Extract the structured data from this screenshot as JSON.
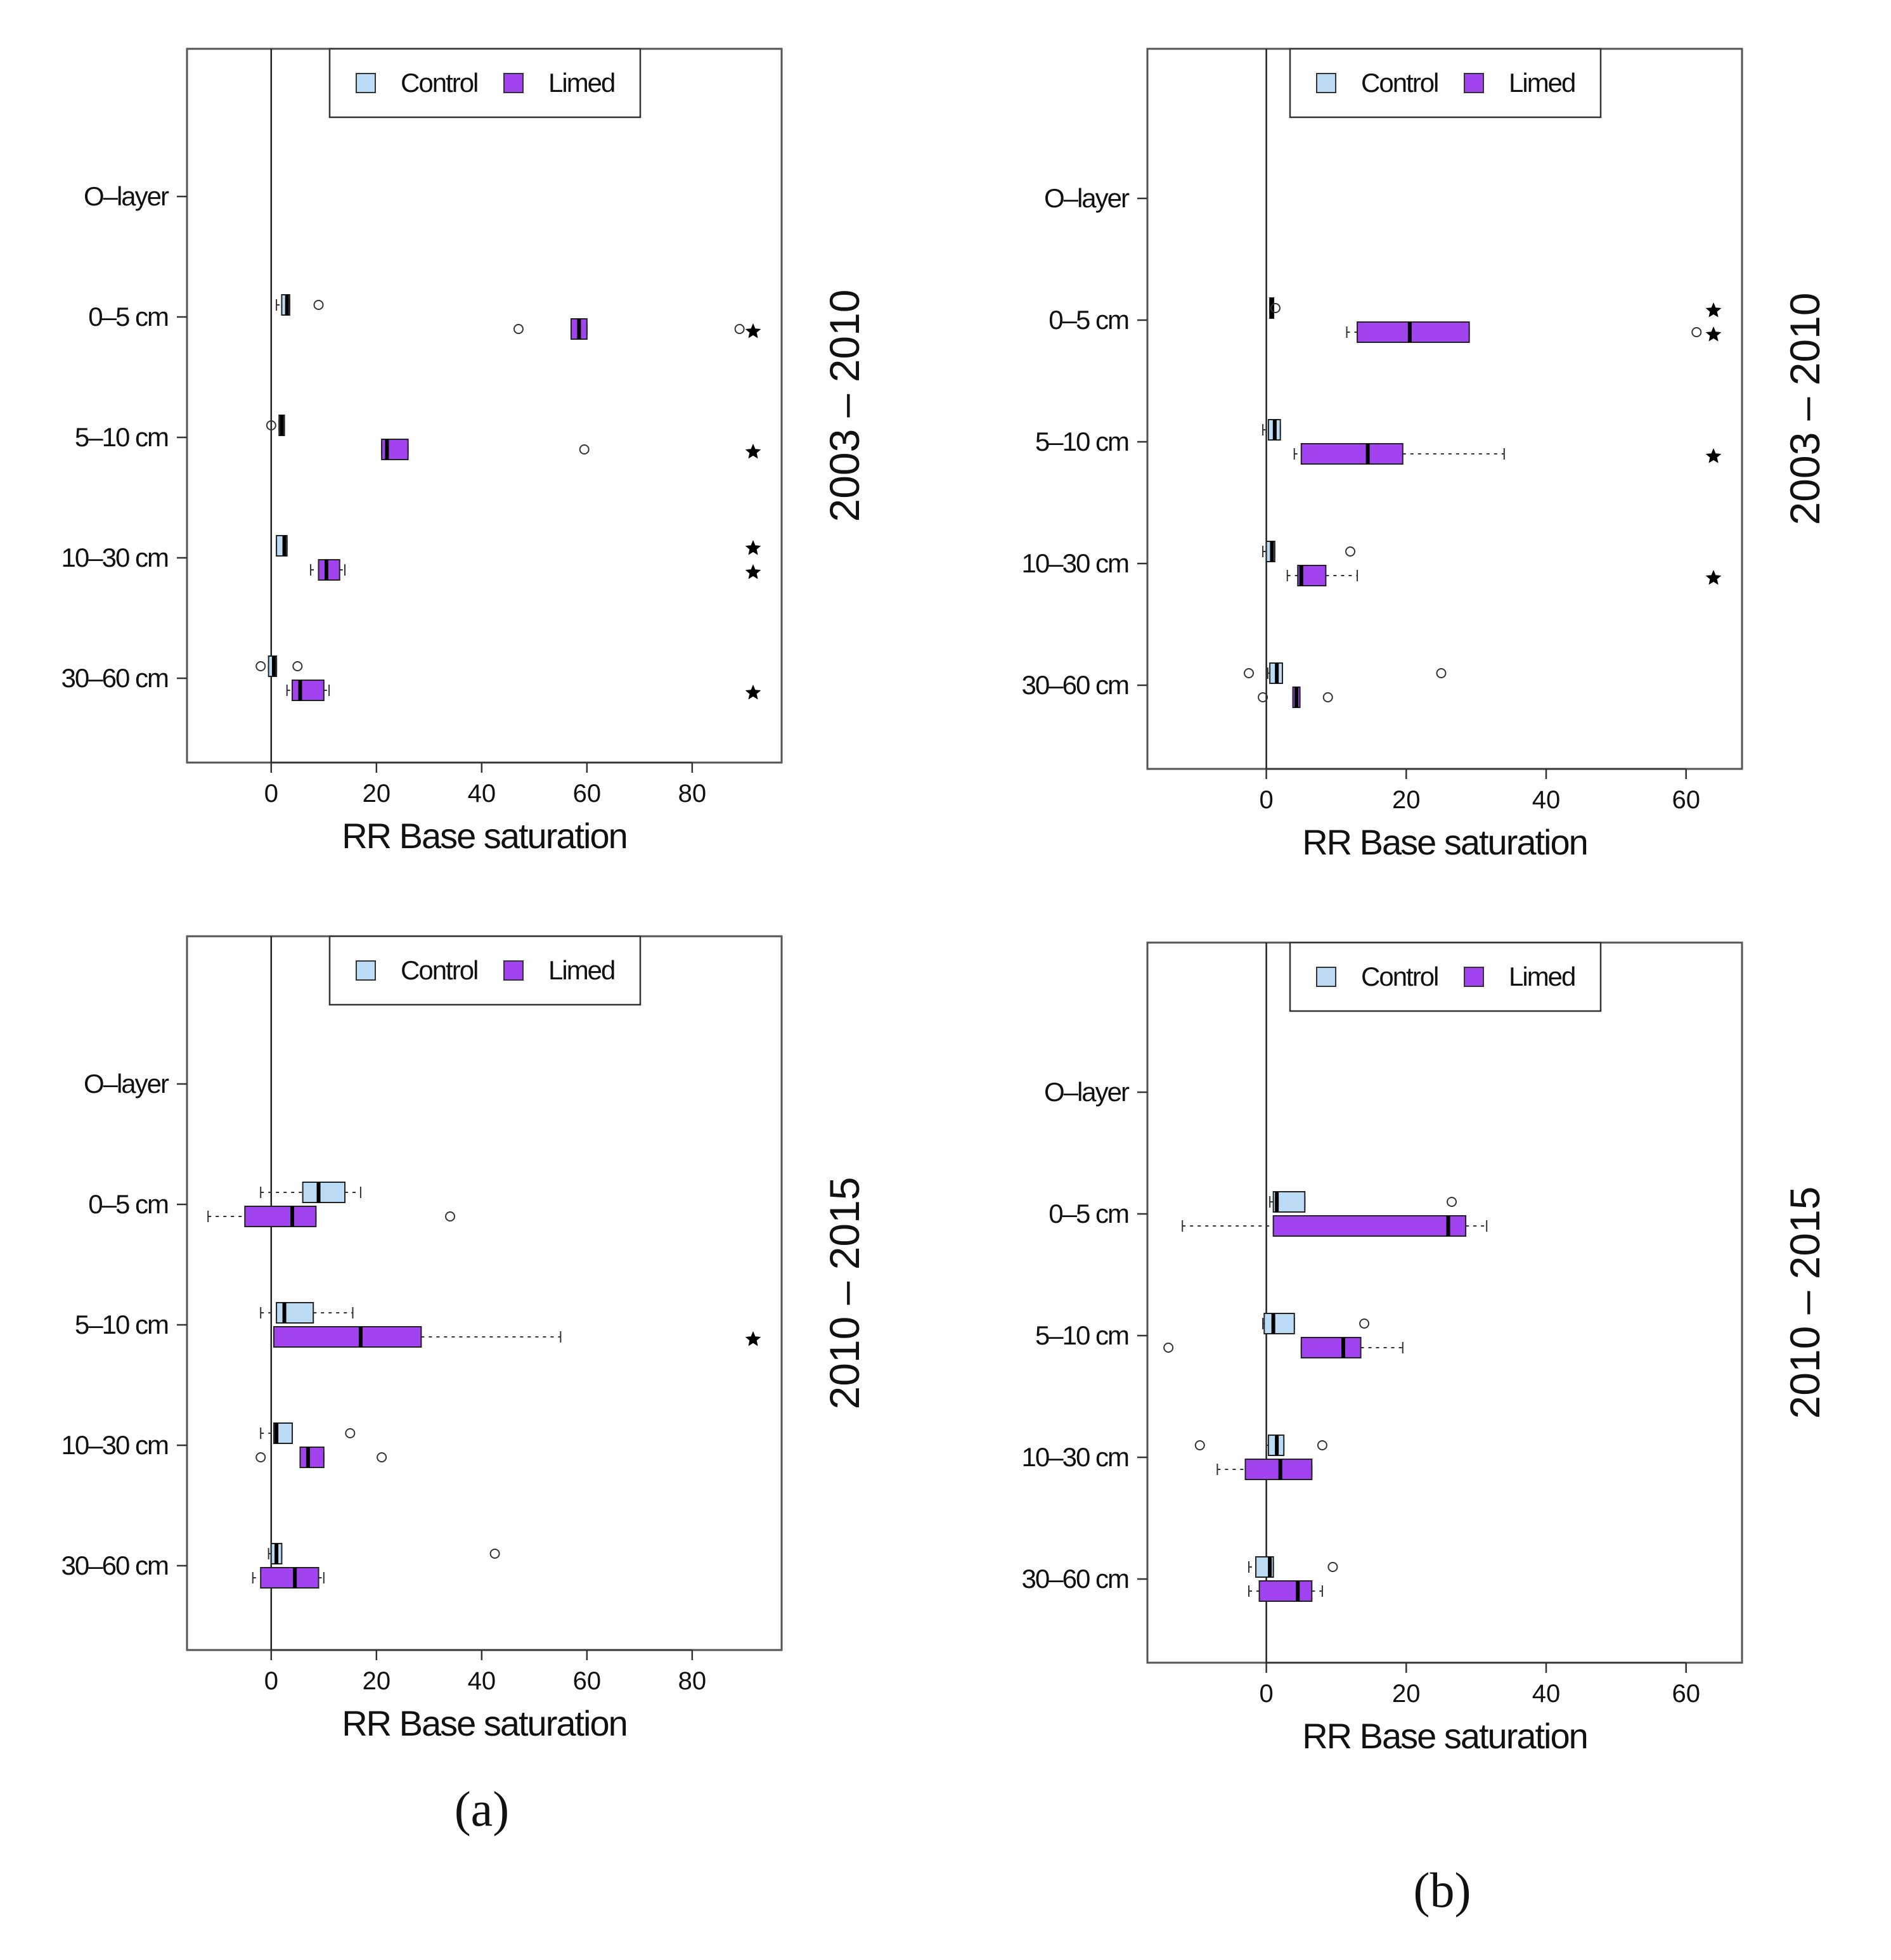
{
  "legend": {
    "control": "Control",
    "limed": "Limed"
  },
  "colors": {
    "control": "#bcdcf5",
    "limed": "#a243f0",
    "median": "#000000",
    "frame": "#555555",
    "whisker": "#333333"
  },
  "panel_labels": [
    "(a)",
    "(b)"
  ],
  "chart_data": [
    {
      "type": "boxplot",
      "orientation": "horizontal",
      "xlabel": "RR Base saturation",
      "period": "2003 – 2010",
      "xlim": [
        -16,
        97
      ],
      "xticks": [
        0,
        20,
        40,
        60,
        80
      ],
      "categories": [
        "O–layer",
        "0–5 cm",
        "5–10 cm",
        "10–30 cm",
        "30–60 cm"
      ],
      "series": [
        {
          "name": "Control",
          "boxes": [
            null,
            {
              "whislo": 1,
              "q1": 2,
              "med": 3,
              "q3": 3.5,
              "whishi": 3.5,
              "fliers": [
                9
              ]
            },
            {
              "whislo": 1.5,
              "q1": 1.5,
              "med": 2,
              "q3": 2.5,
              "whishi": 2.5,
              "fliers": [
                0
              ]
            },
            {
              "whislo": 1,
              "q1": 1,
              "med": 2.5,
              "q3": 3,
              "whishi": 3,
              "fliers": []
            },
            {
              "whislo": -0.5,
              "q1": -0.5,
              "med": 0.5,
              "q3": 1,
              "whishi": 1,
              "fliers": [
                -2,
                5
              ]
            }
          ],
          "significant": [
            false,
            false,
            false,
            true,
            false
          ]
        },
        {
          "name": "Limed",
          "boxes": [
            null,
            {
              "whislo": 57,
              "q1": 57,
              "med": 58.5,
              "q3": 60,
              "whishi": 60,
              "fliers": [
                47,
                89
              ]
            },
            {
              "whislo": 21,
              "q1": 21,
              "med": 22,
              "q3": 26,
              "whishi": 26,
              "fliers": [
                59.5
              ]
            },
            {
              "whislo": 7.5,
              "q1": 9,
              "med": 10.5,
              "q3": 13,
              "whishi": 14,
              "fliers": []
            },
            {
              "whislo": 3,
              "q1": 4,
              "med": 5.5,
              "q3": 10,
              "whishi": 11,
              "fliers": []
            }
          ],
          "significant": [
            false,
            true,
            true,
            true,
            true
          ]
        }
      ]
    },
    {
      "type": "boxplot",
      "orientation": "horizontal",
      "xlabel": "RR Base saturation",
      "period": "2003 – 2010",
      "xlim": [
        -17,
        68
      ],
      "xticks": [
        0,
        20,
        40,
        60
      ],
      "categories": [
        "O–layer",
        "0–5 cm",
        "5–10 cm",
        "10–30 cm",
        "30–60 cm"
      ],
      "series": [
        {
          "name": "Control",
          "boxes": [
            null,
            {
              "whislo": 0.5,
              "q1": 0.5,
              "med": 0.8,
              "q3": 1,
              "whishi": 1,
              "fliers": [
                1.3
              ]
            },
            {
              "whislo": -0.5,
              "q1": 0.3,
              "med": 1.2,
              "q3": 2,
              "whishi": 2,
              "fliers": []
            },
            {
              "whislo": -0.5,
              "q1": 0,
              "med": 0.8,
              "q3": 1.2,
              "whishi": 1.2,
              "fliers": [
                12
              ]
            },
            {
              "whislo": 0.2,
              "q1": 0.5,
              "med": 1.5,
              "q3": 2.3,
              "whishi": 2.3,
              "fliers": [
                -2.5,
                25
              ]
            }
          ],
          "significant": [
            false,
            true,
            false,
            false,
            false
          ]
        },
        {
          "name": "Limed",
          "boxes": [
            null,
            {
              "whislo": 11.5,
              "q1": 13,
              "med": 20.5,
              "q3": 29,
              "whishi": 29,
              "fliers": [
                61.5
              ]
            },
            {
              "whislo": 4,
              "q1": 5,
              "med": 14.5,
              "q3": 19.5,
              "whishi": 34,
              "fliers": []
            },
            {
              "whislo": 3,
              "q1": 4.5,
              "med": 5,
              "q3": 8.5,
              "whishi": 13,
              "fliers": []
            },
            {
              "whislo": 3.8,
              "q1": 3.8,
              "med": 4.3,
              "q3": 4.8,
              "whishi": 4.8,
              "fliers": [
                -0.5,
                8.8
              ]
            }
          ],
          "significant": [
            false,
            true,
            true,
            true,
            false
          ]
        }
      ]
    },
    {
      "type": "boxplot",
      "orientation": "horizontal",
      "xlabel": "RR Base saturation",
      "period": "2010 – 2015",
      "xlim": [
        -16,
        97
      ],
      "xticks": [
        0,
        20,
        40,
        60,
        80
      ],
      "categories": [
        "O–layer",
        "0–5 cm",
        "5–10 cm",
        "10–30 cm",
        "30–60 cm"
      ],
      "series": [
        {
          "name": "Control",
          "boxes": [
            null,
            {
              "whislo": -2,
              "q1": 6,
              "med": 9,
              "q3": 14,
              "whishi": 17,
              "fliers": []
            },
            {
              "whislo": -2,
              "q1": 1,
              "med": 2.5,
              "q3": 8,
              "whishi": 15.5,
              "fliers": []
            },
            {
              "whislo": -2,
              "q1": 0.5,
              "med": 1,
              "q3": 4,
              "whishi": 4,
              "fliers": [
                15
              ]
            },
            {
              "whislo": -0.5,
              "q1": 0,
              "med": 1,
              "q3": 2,
              "whishi": 2,
              "fliers": [
                42.5
              ]
            }
          ],
          "significant": [
            false,
            false,
            false,
            false,
            false
          ]
        },
        {
          "name": "Limed",
          "boxes": [
            null,
            {
              "whislo": -12,
              "q1": -5,
              "med": 4,
              "q3": 8.5,
              "whishi": 8.5,
              "fliers": [
                34
              ]
            },
            {
              "whislo": 0.5,
              "q1": 0.5,
              "med": 17,
              "q3": 28.5,
              "whishi": 55,
              "fliers": []
            },
            {
              "whislo": 5.5,
              "q1": 5.5,
              "med": 7,
              "q3": 10,
              "whishi": 10,
              "fliers": [
                -2,
                21
              ]
            },
            {
              "whislo": -3.5,
              "q1": -2,
              "med": 4.5,
              "q3": 9,
              "whishi": 10,
              "fliers": []
            }
          ],
          "significant": [
            false,
            false,
            true,
            false,
            false
          ]
        }
      ]
    },
    {
      "type": "boxplot",
      "orientation": "horizontal",
      "xlabel": "RR Base saturation",
      "period": "2010 – 2015",
      "xlim": [
        -17,
        68
      ],
      "xticks": [
        0,
        20,
        40,
        60
      ],
      "categories": [
        "O–layer",
        "0–5 cm",
        "5–10 cm",
        "10–30 cm",
        "30–60 cm"
      ],
      "series": [
        {
          "name": "Control",
          "boxes": [
            null,
            {
              "whislo": 0.5,
              "q1": 1,
              "med": 1.5,
              "q3": 5.5,
              "whishi": 5.5,
              "fliers": [
                26.5
              ]
            },
            {
              "whislo": -0.5,
              "q1": -0.3,
              "med": 1,
              "q3": 4,
              "whishi": 4,
              "fliers": [
                14
              ]
            },
            {
              "whislo": 0,
              "q1": 0.3,
              "med": 1.5,
              "q3": 2.5,
              "whishi": 2.5,
              "fliers": [
                -9.5,
                8
              ]
            },
            {
              "whislo": -2.5,
              "q1": -1.5,
              "med": 0.5,
              "q3": 1,
              "whishi": 1,
              "fliers": [
                9.5
              ]
            }
          ],
          "significant": [
            false,
            false,
            false,
            false,
            false
          ]
        },
        {
          "name": "Limed",
          "boxes": [
            null,
            {
              "whislo": -12,
              "q1": 1,
              "med": 26,
              "q3": 28.5,
              "whishi": 31.5,
              "fliers": []
            },
            {
              "whislo": 5,
              "q1": 5,
              "med": 11,
              "q3": 13.5,
              "whishi": 19.5,
              "fliers": [
                -14
              ]
            },
            {
              "whislo": -7,
              "q1": -3,
              "med": 2,
              "q3": 6.5,
              "whishi": 6.5,
              "fliers": []
            },
            {
              "whislo": -2.5,
              "q1": -1,
              "med": 4.5,
              "q3": 6.5,
              "whishi": 8,
              "fliers": []
            }
          ],
          "significant": [
            false,
            false,
            false,
            false,
            false
          ]
        }
      ]
    }
  ]
}
